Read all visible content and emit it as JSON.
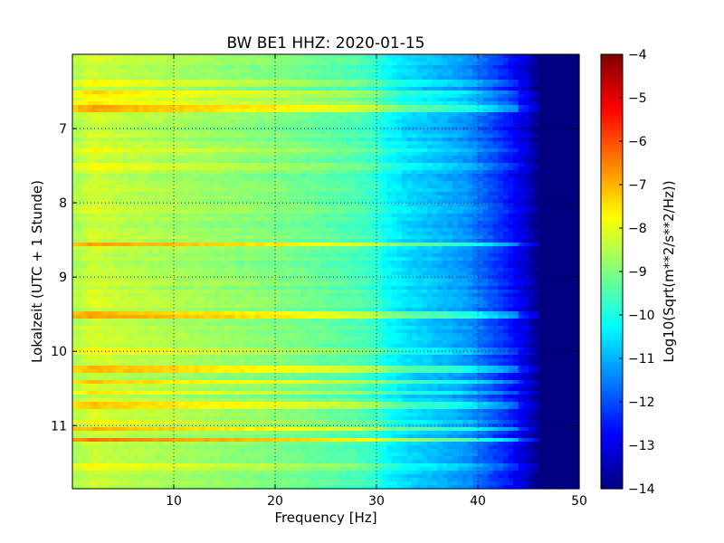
{
  "chart_data": {
    "type": "heatmap",
    "title": "BW BE1 HHZ: 2020-01-15",
    "xlabel": "Frequency [Hz]",
    "ylabel": "Lokalzeit (UTC + 1 Stunde)",
    "xlim": [
      0,
      50
    ],
    "ylim": [
      6.0,
      11.85
    ],
    "y_inverted": true,
    "grid": true,
    "grid_style": "dotted",
    "x_ticks": [
      10,
      20,
      30,
      40,
      50
    ],
    "x_tick_labels": [
      "10",
      "20",
      "30",
      "40",
      "50"
    ],
    "y_ticks": [
      7,
      8,
      9,
      10,
      11
    ],
    "y_tick_labels": [
      "7",
      "8",
      "9",
      "10",
      "11"
    ],
    "colormap": "jet",
    "colorbar": {
      "label": "Log10(Sqrt(m**2/s**2/Hz))",
      "range": [
        -14,
        -4
      ],
      "ticks": [
        -4,
        -5,
        -6,
        -7,
        -8,
        -9,
        -10,
        -11,
        -12,
        -13,
        -14
      ],
      "tick_labels": [
        "−4",
        "−5",
        "−6",
        "−7",
        "−8",
        "−9",
        "−10",
        "−11",
        "−12",
        "−13",
        "−14"
      ]
    },
    "frequency_profile": {
      "frequency_hz": [
        0,
        2,
        5,
        10,
        15,
        20,
        25,
        28,
        30,
        31,
        33,
        36,
        39,
        41,
        43,
        45,
        46,
        50
      ],
      "log10_amplitude": [
        -8.6,
        -8.2,
        -8.4,
        -8.6,
        -8.8,
        -9.0,
        -9.3,
        -9.5,
        -9.8,
        -10.2,
        -10.6,
        -10.9,
        -11.3,
        -11.9,
        -12.5,
        -13.3,
        -14.0,
        -14.0
      ]
    },
    "bands": [
      {
        "time": 6.38,
        "delta": 0.6
      },
      {
        "time": 6.42,
        "delta": 0.4
      },
      {
        "time": 6.5,
        "delta": 0.9
      },
      {
        "time": 6.58,
        "delta": 0.5
      },
      {
        "time": 6.65,
        "delta": 0.7
      },
      {
        "time": 6.72,
        "delta": 1.3
      },
      {
        "time": 7.3,
        "delta": 0.6
      },
      {
        "time": 7.5,
        "delta": 0.4
      },
      {
        "time": 8.55,
        "delta": 1.3
      },
      {
        "time": 9.5,
        "delta": 1.3
      },
      {
        "time": 10.0,
        "delta": 0.4
      },
      {
        "time": 10.23,
        "delta": 1.3
      },
      {
        "time": 10.4,
        "delta": 1.0
      },
      {
        "time": 10.55,
        "delta": 0.6
      },
      {
        "time": 10.72,
        "delta": 1.1
      },
      {
        "time": 10.95,
        "delta": 0.6
      },
      {
        "time": 11.05,
        "delta": 1.3
      },
      {
        "time": 11.18,
        "delta": 1.7
      },
      {
        "time": 11.55,
        "delta": 0.5
      }
    ]
  }
}
